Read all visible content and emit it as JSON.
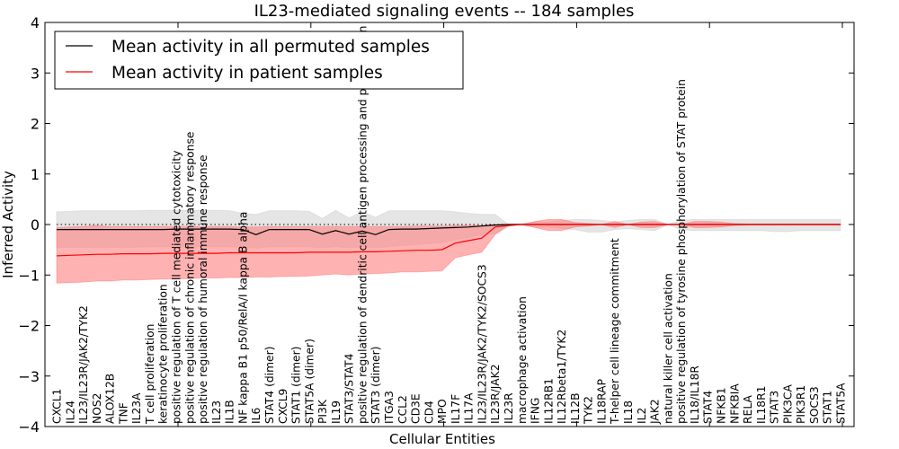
{
  "chart_data": {
    "type": "line",
    "title": "IL23-mediated signaling events -- 184 samples",
    "xlabel": "Cellular Entities",
    "ylabel": "Inferred Activity",
    "ylim": [
      -4,
      4
    ],
    "yticks": [
      "4",
      "3",
      "2",
      "1",
      "0",
      "−1",
      "−2",
      "−3",
      "−4"
    ],
    "ytick_values": [
      4,
      3,
      2,
      1,
      0,
      -1,
      -2,
      -3,
      -4
    ],
    "grid": false,
    "reference_line": 0,
    "legend": {
      "placement": "top-left",
      "entries": [
        {
          "label": "Mean activity in all permuted samples",
          "color": "#000000"
        },
        {
          "label": "Mean activity in patient samples",
          "color": "#ff0000"
        }
      ]
    },
    "colors": {
      "permuted_line": "#000000",
      "permuted_band": "#d3d3d3",
      "patient_line": "#ff0000",
      "patient_band": "#ff7f7f"
    },
    "categories": [
      "CXCL1",
      "IL24",
      "IL23/IL23R/JAK2/TYK2",
      "NOS2",
      "ALOX12B",
      "TNF",
      "IL23A",
      "T cell proliferation",
      "keratinocyte proliferation",
      "positive regulation of T cell mediated cytotoxicity",
      "positive regulation of chronic inflammatory response",
      "positive regulation of humoral immune response",
      "IL23",
      "IL1B",
      "NF kappa B1 p50/RelA/I kappa B alpha",
      "IL6",
      "STAT4 (dimer)",
      "CXCL9",
      "STAT1 (dimer)",
      "STAT5A (dimer)",
      "PI3K",
      "IL19",
      "STAT3/STAT4",
      "positive regulation of dendritic cell antigen processing and presentation",
      "STAT3 (dimer)",
      "ITGA3",
      "CCL2",
      "CD3E",
      "CD4",
      "MPO",
      "IL17F",
      "IL17A",
      "IL23/IL23R/JAK2/TYK2/SOCS3",
      "IL23R/JAK2",
      "IL23R",
      "macrophage activation",
      "IFNG",
      "IL12RB1",
      "IL12Rbeta1/TYK2",
      "IL12B",
      "TYK2",
      "IL18RAP",
      "T-helper cell lineage commitment",
      "IL18",
      "IL2",
      "JAK2",
      "natural killer cell activation",
      "positive regulation of tyrosine phosphorylation of STAT protein",
      "IL18/IL18R",
      "STAT4",
      "NFKB1",
      "NFKBIA",
      "RELA",
      "IL18R1",
      "STAT3",
      "PIK3CA",
      "PIK3R1",
      "SOCS3",
      "STAT1",
      "STAT5A"
    ],
    "series": [
      {
        "name": "Mean activity in all permuted samples",
        "values": [
          -0.1,
          -0.1,
          -0.1,
          -0.1,
          -0.1,
          -0.1,
          -0.1,
          -0.1,
          -0.1,
          -0.09,
          -0.09,
          -0.09,
          -0.09,
          -0.09,
          -0.1,
          -0.2,
          -0.1,
          -0.1,
          -0.1,
          -0.1,
          -0.19,
          -0.12,
          -0.19,
          -0.13,
          -0.2,
          -0.1,
          -0.09,
          -0.09,
          -0.08,
          -0.07,
          -0.06,
          -0.05,
          -0.03,
          -0.01,
          0,
          0,
          0,
          0,
          0,
          0,
          0,
          0,
          0,
          0,
          0,
          0,
          0,
          0,
          0,
          0,
          0,
          0,
          0,
          0,
          0,
          0,
          0,
          0,
          0,
          0
        ],
        "upper": [
          0.25,
          0.26,
          0.27,
          0.27,
          0.27,
          0.27,
          0.27,
          0.28,
          0.28,
          0.28,
          0.28,
          0.28,
          0.28,
          0.27,
          0.22,
          0.2,
          0.27,
          0.27,
          0.27,
          0.26,
          0.12,
          0.28,
          0.13,
          0.25,
          0.14,
          0.27,
          0.27,
          0.27,
          0.27,
          0.27,
          0.25,
          0.22,
          0.2,
          0.2,
          0.0,
          0.02,
          0.05,
          0.05,
          0.08,
          0.1,
          0.1,
          0.08,
          0.05,
          0.08,
          0.1,
          0.1,
          0.0,
          0.08,
          0.1,
          0.1,
          0.1,
          0.1,
          0.1,
          0.1,
          0.1,
          0.1,
          0.1,
          0.1,
          0.1,
          0.1
        ],
        "lower": [
          -0.46,
          -0.45,
          -0.45,
          -0.45,
          -0.45,
          -0.45,
          -0.45,
          -0.44,
          -0.44,
          -0.44,
          -0.44,
          -0.44,
          -0.44,
          -0.44,
          -0.45,
          -0.47,
          -0.44,
          -0.44,
          -0.44,
          -0.44,
          -0.46,
          -0.44,
          -0.46,
          -0.44,
          -0.46,
          -0.44,
          -0.42,
          -0.4,
          -0.38,
          -0.36,
          -0.3,
          -0.25,
          -0.2,
          -0.18,
          0.0,
          -0.02,
          -0.05,
          -0.05,
          -0.08,
          -0.1,
          -0.15,
          -0.15,
          -0.1,
          -0.08,
          -0.1,
          -0.12,
          0.0,
          -0.1,
          -0.12,
          -0.12,
          -0.12,
          -0.12,
          -0.12,
          -0.12,
          -0.14,
          -0.14,
          -0.12,
          -0.12,
          -0.12,
          -0.12
        ]
      },
      {
        "name": "Mean activity in patient samples",
        "values": [
          -0.62,
          -0.61,
          -0.6,
          -0.59,
          -0.59,
          -0.58,
          -0.58,
          -0.58,
          -0.57,
          -0.57,
          -0.57,
          -0.57,
          -0.57,
          -0.56,
          -0.56,
          -0.56,
          -0.56,
          -0.56,
          -0.56,
          -0.55,
          -0.55,
          -0.55,
          -0.55,
          -0.54,
          -0.54,
          -0.53,
          -0.52,
          -0.51,
          -0.51,
          -0.5,
          -0.37,
          -0.32,
          -0.27,
          -0.05,
          -0.02,
          0,
          0,
          0,
          0,
          0,
          0,
          0,
          0,
          0,
          0,
          0,
          0,
          0,
          0,
          0,
          0,
          0,
          0,
          0,
          0,
          0,
          0,
          0,
          0,
          0
        ],
        "upper": [
          -0.06,
          -0.05,
          -0.04,
          -0.02,
          -0.04,
          -0.04,
          -0.04,
          -0.04,
          -0.04,
          -0.04,
          -0.04,
          -0.04,
          -0.04,
          -0.04,
          -0.05,
          -0.05,
          -0.04,
          -0.04,
          -0.04,
          -0.04,
          -0.04,
          -0.04,
          -0.04,
          -0.04,
          -0.04,
          -0.04,
          -0.04,
          -0.03,
          -0.03,
          -0.03,
          -0.02,
          -0.02,
          -0.02,
          0.0,
          0.0,
          0.0,
          0.06,
          0.1,
          0.1,
          0.04,
          0.02,
          0.0,
          0.06,
          0.0,
          0.05,
          0.06,
          0.0,
          0.0,
          0.06,
          0.06,
          0.05,
          0.02,
          0.01,
          0.01,
          0.01,
          0.01,
          0.01,
          0.01,
          0.01,
          0.01
        ],
        "lower": [
          -1.16,
          -1.15,
          -1.14,
          -1.12,
          -1.12,
          -1.1,
          -1.1,
          -1.09,
          -1.08,
          -1.08,
          -1.07,
          -1.06,
          -1.06,
          -1.05,
          -1.05,
          -1.04,
          -1.04,
          -1.03,
          -1.03,
          -1.02,
          -1.0,
          -0.98,
          -1.0,
          -0.98,
          -0.97,
          -0.96,
          -0.94,
          -0.94,
          -0.93,
          -0.92,
          -0.66,
          -0.6,
          -0.55,
          -0.2,
          -0.03,
          0.0,
          -0.06,
          -0.12,
          -0.12,
          -0.05,
          -0.03,
          0.0,
          -0.06,
          0.0,
          -0.06,
          -0.06,
          0.0,
          0.0,
          -0.06,
          -0.06,
          -0.05,
          -0.02,
          -0.01,
          -0.01,
          -0.01,
          -0.01,
          -0.01,
          -0.01,
          -0.01,
          -0.01
        ]
      }
    ]
  }
}
